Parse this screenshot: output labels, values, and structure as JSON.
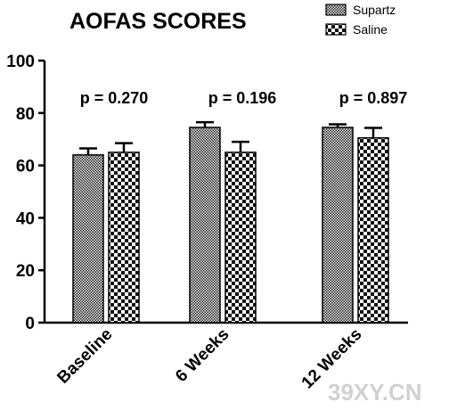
{
  "chart_data": {
    "type": "bar",
    "title": "AOFAS SCORES",
    "categories": [
      "Baseline",
      "6 Weeks",
      "12 Weeks"
    ],
    "series": [
      {
        "name": "Supartz",
        "values": [
          64,
          74.5,
          74.5
        ],
        "error": [
          2.5,
          2.0,
          1.2
        ]
      },
      {
        "name": "Saline",
        "values": [
          65,
          65,
          70.5
        ],
        "error": [
          3.5,
          4.0,
          3.8
        ]
      }
    ],
    "annotations": [
      "p = 0.270",
      "p = 0.196",
      "p = 0.897"
    ],
    "ylim": [
      0,
      100
    ],
    "yticks": [
      0,
      20,
      40,
      60,
      80,
      100
    ],
    "xlabel": "",
    "ylabel": "",
    "legend_position": "top-right",
    "grid": false
  },
  "watermark": "39XY.CN",
  "colors": {
    "axis": "#000000",
    "bar_dark": "#111111",
    "bar_light": "#ffffff",
    "watermark": "#c9c9c9"
  }
}
